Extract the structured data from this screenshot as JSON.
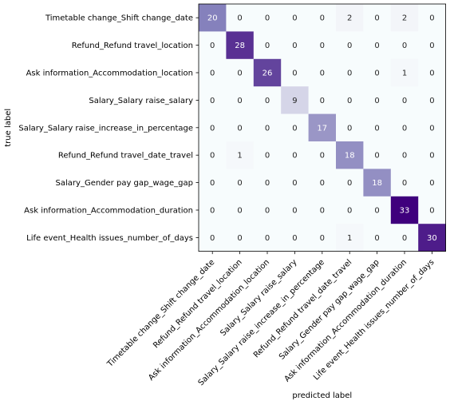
{
  "chart_data": {
    "type": "heatmap",
    "title": "",
    "xlabel": "predicted label",
    "ylabel": "true label",
    "colormap": "purples",
    "vmin": 0,
    "vmax": 33,
    "categories": [
      "Timetable change_Shift change_date",
      "Refund_Refund travel_location",
      "Ask information_Accommodation_location",
      "Salary_Salary raise_salary",
      "Salary_Salary raise_increase_in_percentage",
      "Refund_Refund travel_date_travel",
      "Salary_Gender pay gap_wage_gap",
      "Ask information_Accommodation_duration",
      "Life event_Health issues_number_of_days"
    ],
    "matrix": [
      [
        20,
        0,
        0,
        0,
        0,
        2,
        0,
        2,
        0
      ],
      [
        0,
        28,
        0,
        0,
        0,
        0,
        0,
        0,
        0
      ],
      [
        0,
        0,
        26,
        0,
        0,
        0,
        0,
        1,
        0
      ],
      [
        0,
        0,
        0,
        9,
        0,
        0,
        0,
        0,
        0
      ],
      [
        0,
        0,
        0,
        0,
        17,
        0,
        0,
        0,
        0
      ],
      [
        0,
        1,
        0,
        0,
        0,
        18,
        0,
        0,
        0
      ],
      [
        0,
        0,
        0,
        0,
        0,
        0,
        18,
        0,
        0
      ],
      [
        0,
        0,
        0,
        0,
        0,
        0,
        0,
        33,
        0
      ],
      [
        0,
        0,
        0,
        0,
        0,
        1,
        0,
        0,
        30
      ]
    ]
  }
}
